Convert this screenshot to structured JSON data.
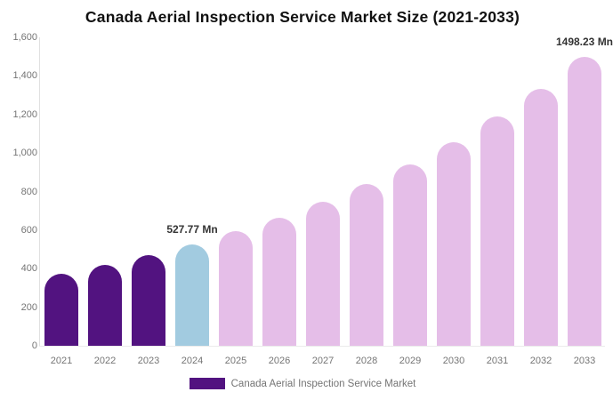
{
  "chart": {
    "title": "Canada Aerial Inspection Service Market Size (2021-2033)"
  },
  "legend": {
    "swatch_color": "#521380",
    "label": "Canada Aerial Inspection Service Market"
  },
  "axis": {
    "line_color": "#e0e0e0",
    "tick_text_color": "#757575"
  },
  "chart_data": {
    "type": "bar",
    "title": "Canada Aerial Inspection Service Market Size (2021-2033)",
    "unit": "Mn",
    "categories": [
      "2021",
      "2022",
      "2023",
      "2024",
      "2025",
      "2026",
      "2027",
      "2028",
      "2029",
      "2030",
      "2031",
      "2032",
      "2033"
    ],
    "values": [
      372.7,
      418.6,
      470.0,
      527.77,
      592.7,
      665.5,
      747.3,
      839.2,
      942.4,
      1058.2,
      1188.3,
      1334.4,
      1498.23
    ],
    "point_labels": [
      "",
      "",
      "",
      "527.77 Mn",
      "",
      "",
      "",
      "",
      "",
      "",
      "",
      "",
      "1498.23 Mn"
    ],
    "bar_colors": [
      "#521380",
      "#521380",
      "#521380",
      "#a2cbe0",
      "#e5bee8",
      "#e5bee8",
      "#e5bee8",
      "#e5bee8",
      "#e5bee8",
      "#e5bee8",
      "#e5bee8",
      "#e5bee8",
      "#e5bee8"
    ],
    "ylim": [
      0,
      1600
    ],
    "ytick_values": [
      0,
      200,
      400,
      600,
      800,
      1000,
      1200,
      1400,
      1600
    ],
    "ytick_labels": [
      "0",
      "200",
      "400",
      "600",
      "800",
      "1,000",
      "1,200",
      "1,400",
      "1,600"
    ],
    "grid": false,
    "legend_position": "bottom",
    "series": [
      {
        "name": "Canada Aerial Inspection Service Market",
        "color": "#521380"
      }
    ]
  }
}
